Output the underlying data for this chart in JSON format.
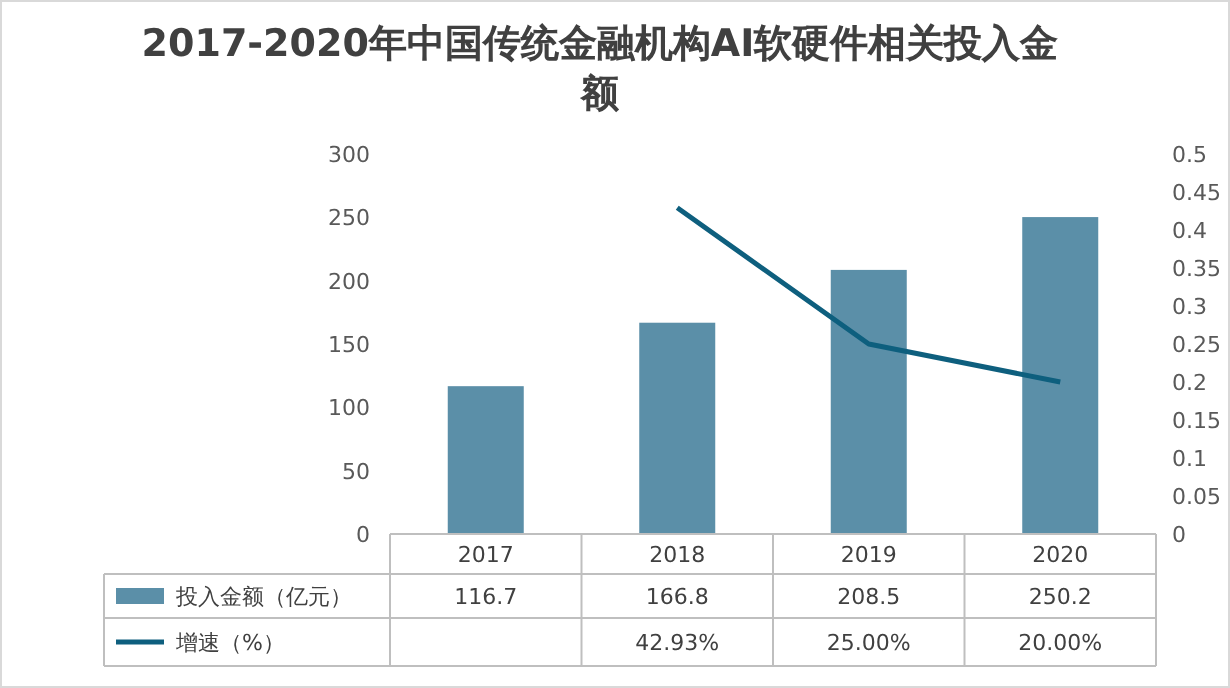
{
  "chart_data": {
    "type": "bar",
    "title": "2017-2020年中国传统金融机构AI软硬件相关投入金额",
    "categories": [
      "2017",
      "2018",
      "2019",
      "2020"
    ],
    "series": [
      {
        "name": "投入金额（亿元）",
        "color": "#5b8fa8",
        "values": [
          116.7,
          166.8,
          208.5,
          250.2
        ],
        "value_labels": [
          "116.7",
          "166.8",
          "208.5",
          "250.2"
        ]
      },
      {
        "name": "增速（%）",
        "type": "line",
        "axis": "y2",
        "color": "#0e5f7e",
        "values": [
          null,
          0.4293,
          0.25,
          0.2
        ],
        "value_labels": [
          null,
          "42.93%",
          "25.00%",
          "20.00%"
        ]
      }
    ],
    "ylim": [
      0,
      300
    ],
    "yticks": [
      0,
      50,
      100,
      150,
      200,
      250,
      300
    ],
    "y2lim": [
      0,
      0.5
    ],
    "y2ticks": [
      0,
      0.05,
      0.1,
      0.15,
      0.2,
      0.25,
      0.3,
      0.35,
      0.4,
      0.45,
      0.5
    ],
    "legend": "bottom",
    "marker": "none",
    "line_style": "solid"
  }
}
